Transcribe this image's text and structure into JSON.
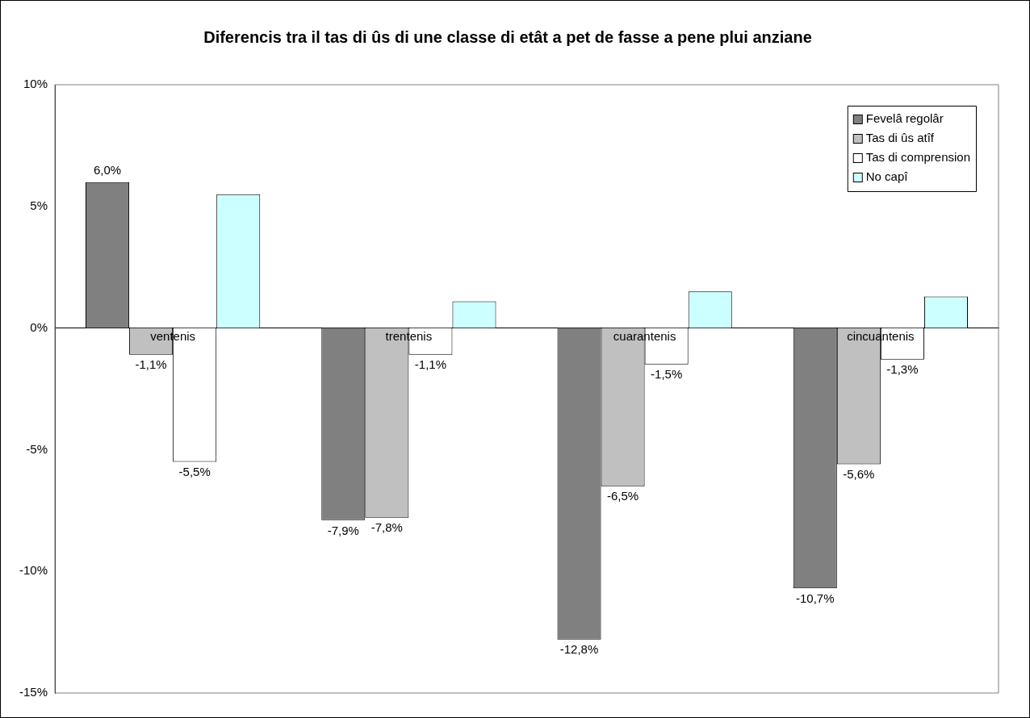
{
  "chart_data": {
    "type": "bar",
    "title": "Diferencis tra il tas di ûs di une classe di etât a pet de fasse a pene plui anziane",
    "categories": [
      "ventenis",
      "trentenis",
      "cuarantenis",
      "cincuantenis"
    ],
    "series": [
      {
        "name": "Fevelâ regolâr",
        "color": "#808080",
        "values": [
          6.0,
          -7.9,
          -12.8,
          -10.7
        ],
        "value_labels": [
          "6,0%",
          "-7,9%",
          "-12,8%",
          "-10,7%"
        ]
      },
      {
        "name": "Tas di ûs atîf",
        "color": "#c0c0c0",
        "values": [
          -1.1,
          -7.8,
          -6.5,
          -5.6
        ],
        "value_labels": [
          "-1,1%",
          "-7,8%",
          "-6,5%",
          "-5,6%"
        ]
      },
      {
        "name": "Tas di comprension",
        "color": "#ffffff",
        "values": [
          -5.5,
          -1.1,
          -1.5,
          -1.3
        ],
        "value_labels": [
          "-5,5%",
          "-1,1%",
          "-1,5%",
          "-1,3%"
        ]
      },
      {
        "name": "No capî",
        "color": "#ccffff",
        "values": [
          5.5,
          1.1,
          1.5,
          1.3
        ]
      }
    ],
    "ylim": [
      -15,
      10
    ],
    "yticks": [
      {
        "value": -15,
        "label": "-15%"
      },
      {
        "value": -10,
        "label": "-10%"
      },
      {
        "value": -5,
        "label": "-5%"
      },
      {
        "value": 0,
        "label": "0%"
      },
      {
        "value": 5,
        "label": "5%"
      },
      {
        "value": 10,
        "label": "10%"
      }
    ],
    "grid": false,
    "legend": "top right"
  }
}
